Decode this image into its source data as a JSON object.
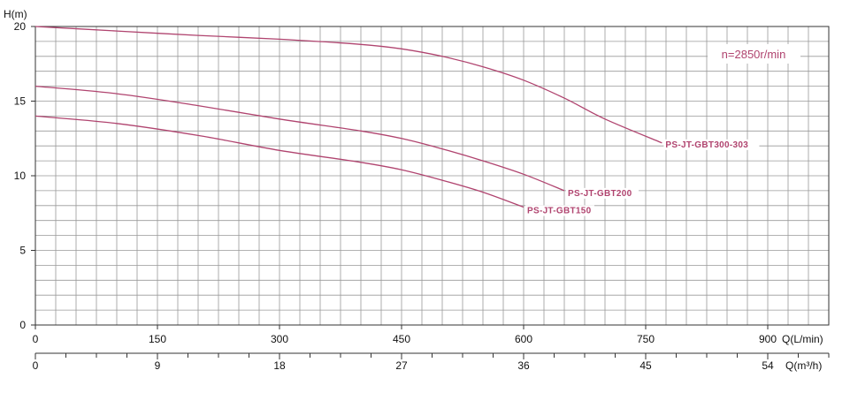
{
  "chart_data": {
    "type": "line",
    "title": "",
    "ylabel": "H(m)",
    "xlabel": "Q(L/min)",
    "x2label": "Q(m³/h)",
    "ylim": [
      0,
      20
    ],
    "xlim": [
      0,
      975
    ],
    "y_ticks": [
      "0",
      "5",
      "10",
      "15",
      "20"
    ],
    "x_ticks": [
      "0",
      "150",
      "300",
      "450",
      "600",
      "750",
      "900"
    ],
    "x2_ticks": [
      "0",
      "9",
      "18",
      "27",
      "36",
      "45",
      "54"
    ],
    "annotation": "n=2850r/min",
    "colors": {
      "curve": "#b0446f",
      "grid": "#999999",
      "axis": "#333333"
    },
    "series": [
      {
        "name": "PS-JT-GBT300-303",
        "x": [
          0,
          100,
          200,
          300,
          400,
          450,
          500,
          550,
          600,
          650,
          700,
          770
        ],
        "y": [
          20,
          19.7,
          19.4,
          19.15,
          18.8,
          18.5,
          18.0,
          17.3,
          16.4,
          15.2,
          13.8,
          12.2
        ]
      },
      {
        "name": "PS-JT-GBT200",
        "x": [
          0,
          100,
          200,
          300,
          400,
          450,
          500,
          550,
          600,
          650
        ],
        "y": [
          16,
          15.5,
          14.7,
          13.8,
          13.0,
          12.5,
          11.8,
          11.0,
          10.1,
          9.0
        ]
      },
      {
        "name": "PS-JT-GBT150",
        "x": [
          0,
          100,
          200,
          300,
          400,
          450,
          500,
          550,
          600
        ],
        "y": [
          14,
          13.5,
          12.7,
          11.7,
          10.9,
          10.4,
          9.7,
          8.9,
          7.9
        ]
      }
    ]
  }
}
